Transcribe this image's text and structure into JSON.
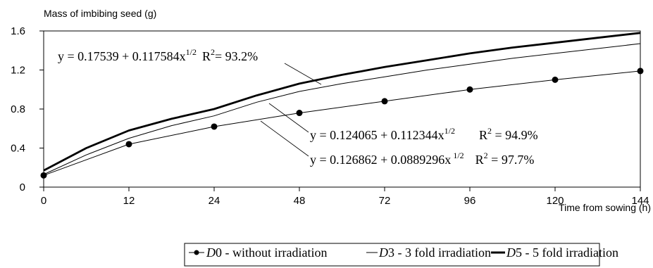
{
  "chart_data": {
    "type": "line",
    "ylabel": "Mass of imbibing seed (g)",
    "xlabel": "Time from sowing (h)",
    "x_ticks": [
      "0",
      "12",
      "24",
      "48",
      "72",
      "96",
      "120",
      "144"
    ],
    "y_ticks": [
      "0",
      "0.4",
      "0.8",
      "1.2",
      "1.6"
    ],
    "ylim": [
      0,
      1.6
    ],
    "grid": false,
    "legend_position": "bottom",
    "series": [
      {
        "name": "D0 - without irradiation",
        "legend_italic": "D",
        "legend_rest": "0 - without irradiation",
        "style": "thin line with markers",
        "points": [
          [
            0,
            0.12
          ],
          [
            12,
            0.44
          ],
          [
            24,
            0.62
          ],
          [
            48,
            0.76
          ],
          [
            72,
            0.88
          ],
          [
            96,
            1.0
          ],
          [
            120,
            1.1
          ],
          [
            144,
            1.19
          ]
        ],
        "equation": {
          "main": "y = 0.126862 + 0.0889296x",
          "exponent": " 1/2",
          "r2_label": "R",
          "r2_sup": "2",
          "r2_value": " = 97.7%"
        }
      },
      {
        "name": "D3 - 3 fold irradiation",
        "legend_italic": "D",
        "legend_rest": "3 - 3 fold irradiation",
        "style": "thin line",
        "points": [
          [
            0,
            0.13
          ],
          [
            6,
            0.33
          ],
          [
            12,
            0.5
          ],
          [
            18,
            0.63
          ],
          [
            24,
            0.73
          ],
          [
            36,
            0.87
          ],
          [
            48,
            0.98
          ],
          [
            60,
            1.06
          ],
          [
            72,
            1.13
          ],
          [
            84,
            1.2
          ],
          [
            96,
            1.26
          ],
          [
            108,
            1.32
          ],
          [
            120,
            1.37
          ],
          [
            132,
            1.42
          ],
          [
            144,
            1.47
          ]
        ],
        "equation": {
          "main": "y = 0.124065 + 0.112344x",
          "exponent": "1/2",
          "r2_label": "R",
          "r2_sup": "2",
          "r2_value": " = 94.9%"
        }
      },
      {
        "name": "D5 - 5 fold irradiation",
        "legend_italic": "D",
        "legend_rest": "5 - 5 fold irradiation",
        "style": "thick line",
        "points": [
          [
            0,
            0.17
          ],
          [
            6,
            0.4
          ],
          [
            12,
            0.58
          ],
          [
            18,
            0.7
          ],
          [
            24,
            0.8
          ],
          [
            36,
            0.94
          ],
          [
            48,
            1.06
          ],
          [
            60,
            1.15
          ],
          [
            72,
            1.23
          ],
          [
            84,
            1.3
          ],
          [
            96,
            1.37
          ],
          [
            108,
            1.43
          ],
          [
            120,
            1.48
          ],
          [
            132,
            1.53
          ],
          [
            144,
            1.58
          ]
        ],
        "equation": {
          "main": "y = 0.17539 + 0.117584x",
          "exponent": "1/2",
          "r2_label": "R",
          "r2_sup": "2",
          "r2_value": "= 93.2%"
        }
      }
    ]
  }
}
